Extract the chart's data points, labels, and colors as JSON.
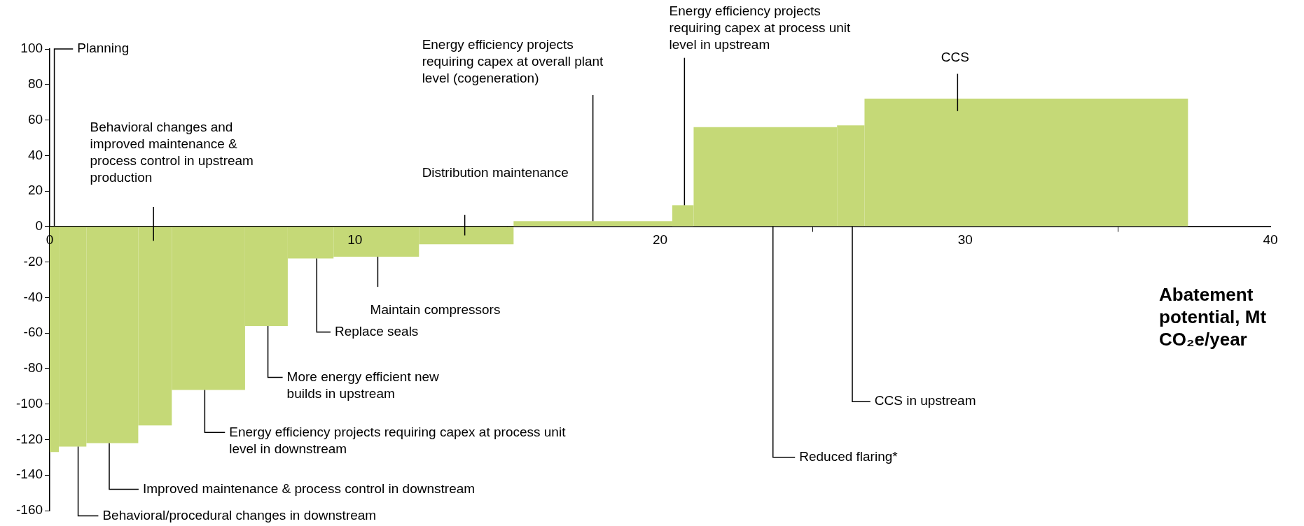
{
  "chart_data": {
    "type": "histogram",
    "xlabel": "Abatement potential, Mt CO₂e/year",
    "bins": [
      0,
      0.3,
      1.2,
      2.9,
      4.0,
      6.4,
      7.8,
      9.3,
      12.1,
      15.2,
      20.4,
      21.1,
      25.8,
      26.7,
      37.3
    ],
    "values": [
      -127,
      -124,
      -122,
      -112,
      -92,
      -56,
      -18,
      -17,
      -10,
      3,
      12,
      56,
      57,
      72
    ],
    "color": "#c5d977",
    "xlim": [
      0,
      40
    ],
    "xticks": [
      0,
      10,
      20,
      30,
      40
    ],
    "ylim": [
      -160,
      100
    ],
    "yticks": [
      -160,
      -140,
      -120,
      -100,
      -80,
      -60,
      -40,
      -20,
      0,
      20,
      40,
      60,
      80,
      100
    ],
    "annotations": [
      {
        "text": "Planning",
        "x": 0.15,
        "y": 0
      },
      "Behavioral changes and improved maintenance & process control in upstream production",
      "Distribution maintenance",
      {
        "text": "Energy efficiency projects requiring capex at overall plant level (cogeneration)",
        "x": 17.8,
        "y": 3
      },
      {
        "text": "Energy efficiency projects requiring capex at process unit level in upstream",
        "x": 20.8,
        "y": 12
      },
      "CCS",
      {
        "text": "Maintain compressors",
        "x": 10.75,
        "y": -17
      },
      {
        "text": "Replace seals",
        "x": 8.75,
        "y": -18
      },
      {
        "text": "More energy efficient new builds in upstream",
        "x": 7.15,
        "y": -56
      },
      {
        "text": "Energy efficiency projects requiring capex at process unit level in downstream",
        "x": 5.08,
        "y": -92
      },
      {
        "text": "Improved maintenance & process control in downstream",
        "x": 1.95,
        "y": -122
      },
      {
        "text": "Behavioral/procedural changes in downstream",
        "x": 0.93,
        "y": -124
      },
      {
        "text": "Reduced flaring*",
        "x": 23.7,
        "y": 0
      },
      {
        "text": "CCS in upstream",
        "x": 26.3,
        "y": 0
      }
    ]
  }
}
